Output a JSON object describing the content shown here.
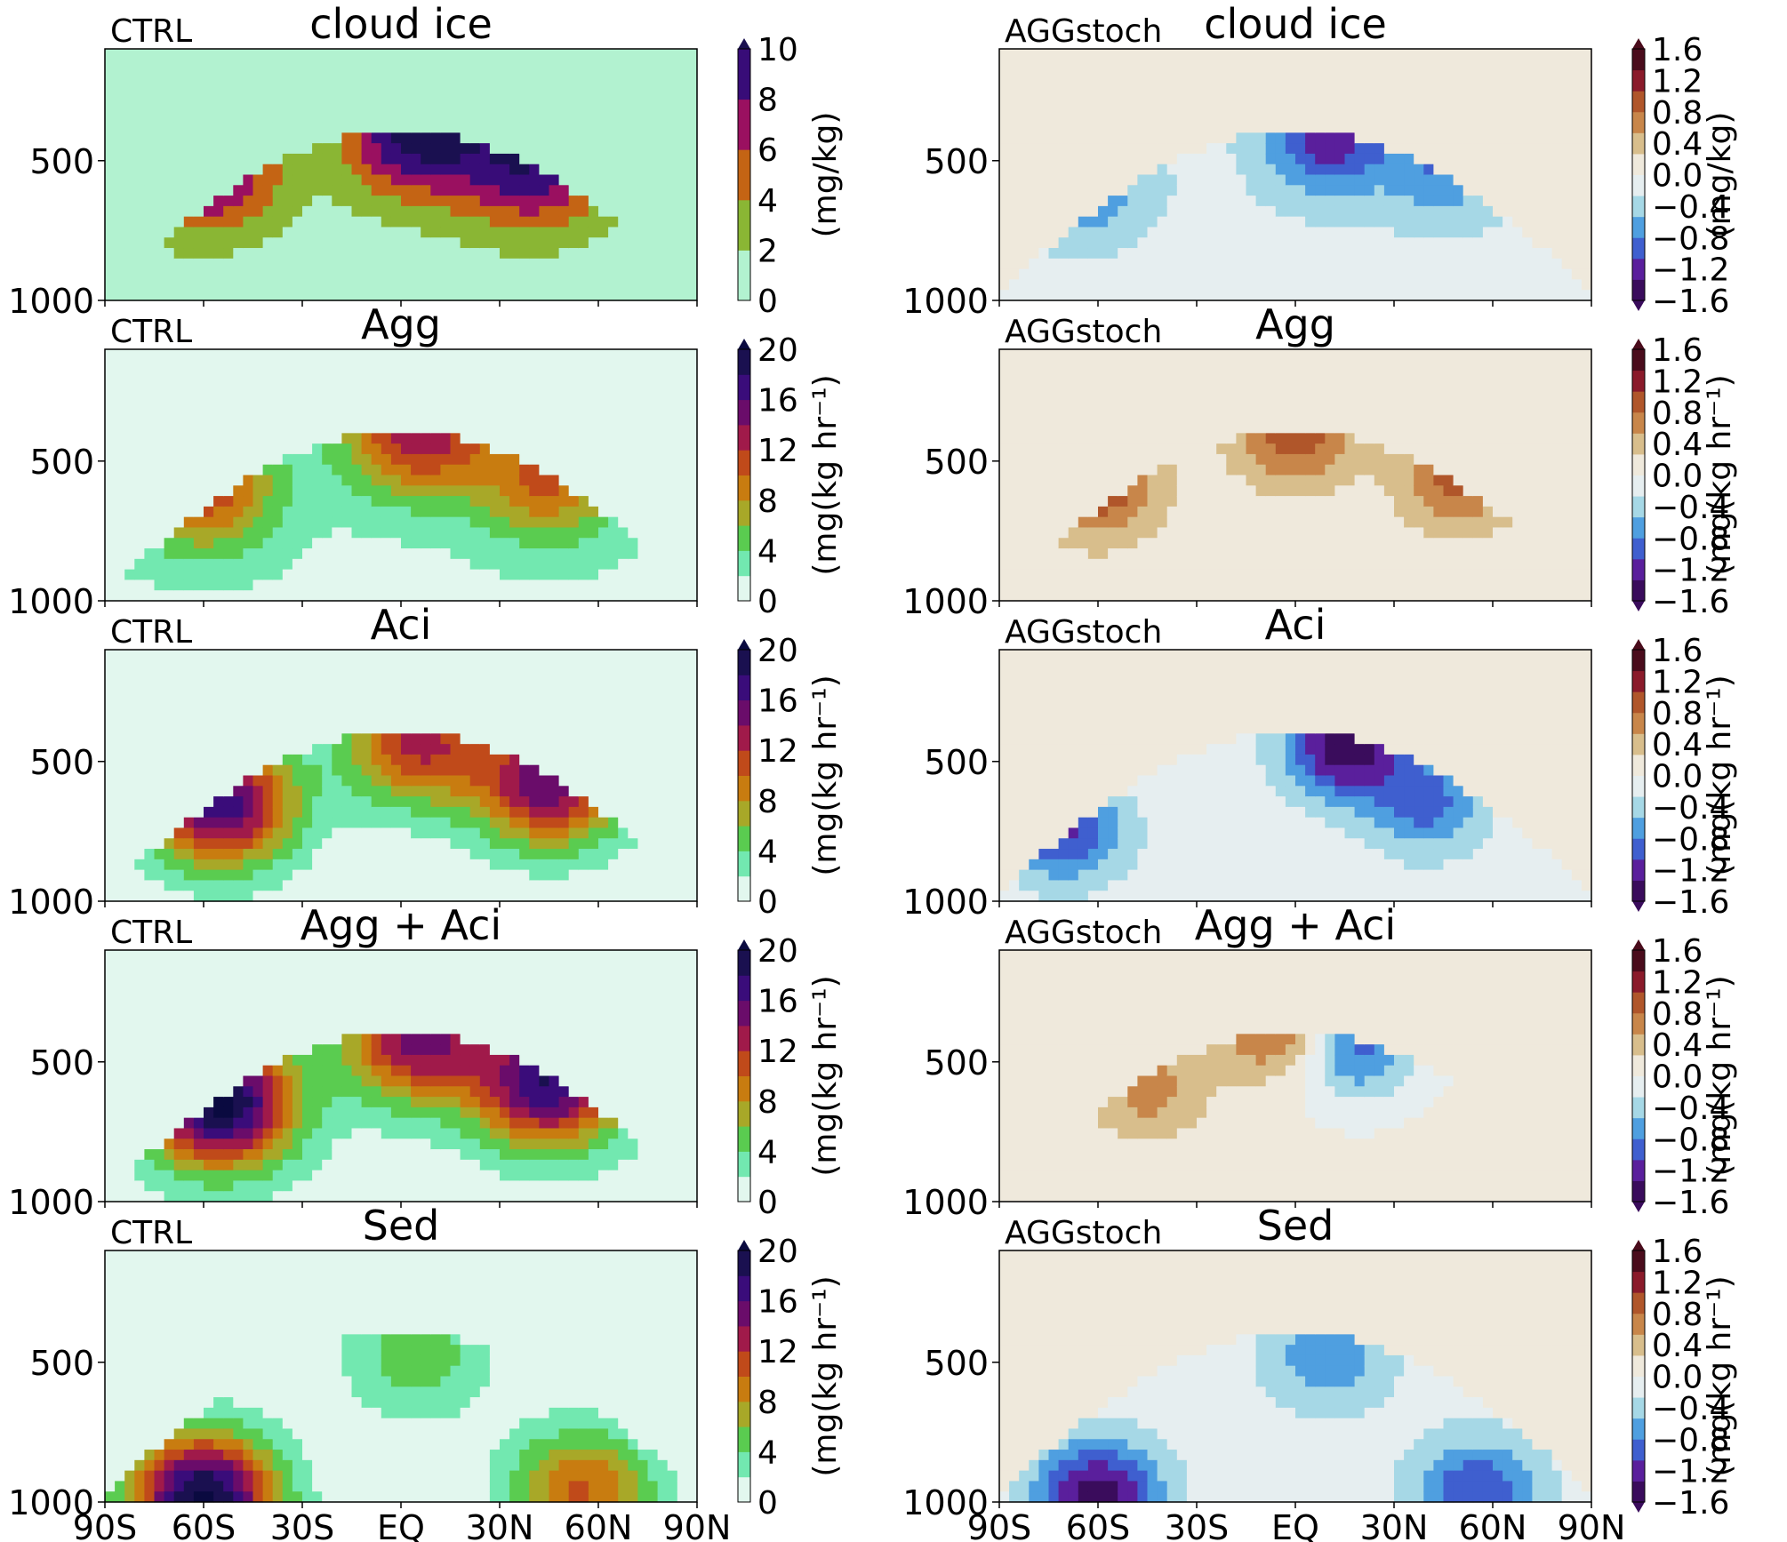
{
  "figure": {
    "xticks": [
      "90S",
      "60S",
      "30S",
      "EQ",
      "30N",
      "60N",
      "90N"
    ],
    "yticks": [
      "500",
      "1000"
    ]
  },
  "chart_data": [
    {
      "type": "heatmap",
      "run_label": "CTRL",
      "title": "cloud ice",
      "column": 0,
      "row": 0,
      "colorbar": {
        "label": "(mg/kg)",
        "ticks": [
          "0",
          "2",
          "4",
          "6",
          "8",
          "10"
        ],
        "min": 0,
        "max": 10,
        "colors": [
          "#b2f2d0",
          "#8ab634",
          "#c46414",
          "#9a1060",
          "#380c78"
        ],
        "extend_top": "#1a1050"
      },
      "field": {
        "kind": "abs",
        "bands": [
          {
            "lat": -60,
            "p": 520,
            "amp": 9
          },
          {
            "lat": 40,
            "p": 520,
            "amp": 8.5
          },
          {
            "lat": 5,
            "p": 400,
            "amp": 10
          }
        ],
        "background": 1.0
      }
    },
    {
      "type": "heatmap",
      "run_label": "AGGstoch",
      "title": "cloud ice",
      "column": 1,
      "row": 0,
      "colorbar": {
        "label": "(mg/kg)",
        "ticks": [
          "1.6",
          "1.2",
          "0.8",
          "0.4",
          "0.0",
          "−0.4",
          "−0.8",
          "−1.2",
          "−1.6"
        ],
        "min": -1.6,
        "max": 1.6,
        "colors": [
          "#3a0c5c",
          "#5a1f9c",
          "#3f5fcf",
          "#4f9fe0",
          "#a6d8e6",
          "#e6eef0",
          "#efe9dc",
          "#d8be8c",
          "#c8864a",
          "#b0562a",
          "#8a1a2a",
          "#4a0c1c"
        ]
      },
      "field": {
        "kind": "diff",
        "spots": [
          {
            "lat": 10,
            "p": 430,
            "amp": -1.0
          },
          {
            "lat": -65,
            "p": 580,
            "amp": -0.7
          },
          {
            "lat": 45,
            "p": 520,
            "amp": -0.6
          }
        ],
        "background": -0.2
      }
    },
    {
      "type": "heatmap",
      "run_label": "CTRL",
      "title": "Agg",
      "column": 0,
      "row": 1,
      "colorbar": {
        "label": "(mg(kg hr⁻¹)",
        "ticks": [
          "0",
          "4",
          "8",
          "12",
          "16",
          "20"
        ],
        "min": 0,
        "max": 20,
        "colors": [
          "#e2f7ee",
          "#72e8b0",
          "#5acc50",
          "#a8a828",
          "#c87c10",
          "#c04a1a",
          "#a01a4a",
          "#6a0c6a",
          "#3a0c7a",
          "#1a1050"
        ],
        "extend_top": "#0a0a40"
      },
      "field": {
        "kind": "abs",
        "bands": [
          {
            "lat": -60,
            "p": 600,
            "amp": 10
          },
          {
            "lat": 45,
            "p": 560,
            "amp": 9
          },
          {
            "lat": 5,
            "p": 400,
            "amp": 12
          }
        ],
        "background": 1.5
      }
    },
    {
      "type": "heatmap",
      "run_label": "AGGstoch",
      "title": "Agg",
      "column": 1,
      "row": 1,
      "colorbar": {
        "label": "(mg(kg hr⁻¹)",
        "ticks": [
          "1.6",
          "1.2",
          "0.8",
          "0.4",
          "0.0",
          "−0.4",
          "−0.8",
          "−1.2",
          "−1.6"
        ],
        "min": -1.6,
        "max": 1.6,
        "colors": [
          "#3a0c5c",
          "#5a1f9c",
          "#3f5fcf",
          "#4f9fe0",
          "#a6d8e6",
          "#e6eef0",
          "#efe9dc",
          "#d8be8c",
          "#c8864a",
          "#b0562a",
          "#8a1a2a",
          "#4a0c1c"
        ]
      },
      "field": {
        "kind": "diff",
        "spots": [
          {
            "lat": -60,
            "p": 600,
            "amp": 0.9
          },
          {
            "lat": 50,
            "p": 560,
            "amp": 0.8
          },
          {
            "lat": 0,
            "p": 400,
            "amp": 0.9
          }
        ],
        "background": 0.1
      }
    },
    {
      "type": "heatmap",
      "run_label": "CTRL",
      "title": "Aci",
      "column": 0,
      "row": 2,
      "colorbar": {
        "label": "(mg(kg hr⁻¹)",
        "ticks": [
          "0",
          "4",
          "8",
          "12",
          "16",
          "20"
        ],
        "min": 0,
        "max": 20,
        "colors": [
          "#e2f7ee",
          "#72e8b0",
          "#5acc50",
          "#a8a828",
          "#c87c10",
          "#c04a1a",
          "#a01a4a",
          "#6a0c6a",
          "#3a0c7a",
          "#1a1050"
        ],
        "extend_top": "#0a0a40"
      },
      "field": {
        "kind": "abs",
        "bands": [
          {
            "lat": -55,
            "p": 650,
            "amp": 17
          },
          {
            "lat": 45,
            "p": 580,
            "amp": 15
          },
          {
            "lat": 5,
            "p": 430,
            "amp": 12
          }
        ],
        "background": 0.5
      }
    },
    {
      "type": "heatmap",
      "run_label": "AGGstoch",
      "title": "Aci",
      "column": 1,
      "row": 2,
      "colorbar": {
        "label": "(mg(kg hr⁻¹)",
        "ticks": [
          "1.6",
          "1.2",
          "0.8",
          "0.4",
          "0.0",
          "−0.4",
          "−0.8",
          "−1.2",
          "−1.6"
        ],
        "min": -1.6,
        "max": 1.6,
        "colors": [
          "#3a0c5c",
          "#5a1f9c",
          "#3f5fcf",
          "#4f9fe0",
          "#a6d8e6",
          "#e6eef0",
          "#efe9dc",
          "#d8be8c",
          "#c8864a",
          "#b0562a",
          "#8a1a2a",
          "#4a0c1c"
        ]
      },
      "field": {
        "kind": "diff",
        "spots": [
          {
            "lat": 15,
            "p": 450,
            "amp": -1.4
          },
          {
            "lat": -70,
            "p": 750,
            "amp": -1.0
          },
          {
            "lat": 40,
            "p": 650,
            "amp": -0.8
          }
        ],
        "background": -0.1
      }
    },
    {
      "type": "heatmap",
      "run_label": "CTRL",
      "title": "Agg + Aci",
      "column": 0,
      "row": 3,
      "colorbar": {
        "label": "(mg(kg hr⁻¹)",
        "ticks": [
          "0",
          "4",
          "8",
          "12",
          "16",
          "20"
        ],
        "min": 0,
        "max": 20,
        "colors": [
          "#e2f7ee",
          "#72e8b0",
          "#5acc50",
          "#a8a828",
          "#c87c10",
          "#c04a1a",
          "#a01a4a",
          "#6a0c6a",
          "#3a0c7a",
          "#1a1050"
        ],
        "extend_top": "#0a0a40"
      },
      "field": {
        "kind": "abs",
        "bands": [
          {
            "lat": -55,
            "p": 650,
            "amp": 20
          },
          {
            "lat": 45,
            "p": 580,
            "amp": 17
          },
          {
            "lat": 5,
            "p": 420,
            "amp": 14
          }
        ],
        "background": 0.8
      }
    },
    {
      "type": "heatmap",
      "run_label": "AGGstoch",
      "title": "Agg + Aci",
      "column": 1,
      "row": 3,
      "colorbar": {
        "label": "(mg(kg hr⁻¹)",
        "ticks": [
          "1.6",
          "1.2",
          "0.8",
          "0.4",
          "0.0",
          "−0.4",
          "−0.8",
          "−1.2",
          "−1.6"
        ],
        "min": -1.6,
        "max": 1.6,
        "colors": [
          "#3a0c5c",
          "#5a1f9c",
          "#3f5fcf",
          "#4f9fe0",
          "#a6d8e6",
          "#e6eef0",
          "#efe9dc",
          "#d8be8c",
          "#c8864a",
          "#b0562a",
          "#8a1a2a",
          "#4a0c1c"
        ]
      },
      "field": {
        "kind": "diff",
        "spots": [
          {
            "lat": -5,
            "p": 380,
            "amp": 0.9
          },
          {
            "lat": 18,
            "p": 450,
            "amp": -1.0
          },
          {
            "lat": -45,
            "p": 600,
            "amp": 0.6
          }
        ],
        "background": 0.05
      }
    },
    {
      "type": "heatmap",
      "run_label": "CTRL",
      "title": "Sed",
      "column": 0,
      "row": 4,
      "colorbar": {
        "label": "(mg(kg hr⁻¹)",
        "ticks": [
          "0",
          "4",
          "8",
          "12",
          "16",
          "20"
        ],
        "min": 0,
        "max": 20,
        "colors": [
          "#e2f7ee",
          "#72e8b0",
          "#5acc50",
          "#a8a828",
          "#c87c10",
          "#c04a1a",
          "#a01a4a",
          "#6a0c6a",
          "#3a0c7a",
          "#1a1050"
        ],
        "extend_top": "#0a0a40"
      },
      "field": {
        "kind": "abs",
        "bands": [
          {
            "lat": -60,
            "p": 980,
            "amp": 20
          },
          {
            "lat": 55,
            "p": 960,
            "amp": 10
          },
          {
            "lat": 5,
            "p": 480,
            "amp": 5
          }
        ],
        "background": 0.3
      }
    },
    {
      "type": "heatmap",
      "run_label": "AGGstoch",
      "title": "Sed",
      "column": 1,
      "row": 4,
      "colorbar": {
        "label": "(mg(kg hr⁻¹)",
        "ticks": [
          "1.6",
          "1.2",
          "0.8",
          "0.4",
          "0.0",
          "−0.4",
          "−0.8",
          "−1.2",
          "−1.6"
        ],
        "min": -1.6,
        "max": 1.6,
        "colors": [
          "#3a0c5c",
          "#5a1f9c",
          "#3f5fcf",
          "#4f9fe0",
          "#a6d8e6",
          "#e6eef0",
          "#efe9dc",
          "#d8be8c",
          "#c8864a",
          "#b0562a",
          "#8a1a2a",
          "#4a0c1c"
        ]
      },
      "field": {
        "kind": "diff",
        "spots": [
          {
            "lat": -60,
            "p": 980,
            "amp": -1.4
          },
          {
            "lat": 55,
            "p": 960,
            "amp": -0.9
          },
          {
            "lat": 10,
            "p": 480,
            "amp": -0.6
          }
        ],
        "background": -0.15
      }
    }
  ]
}
